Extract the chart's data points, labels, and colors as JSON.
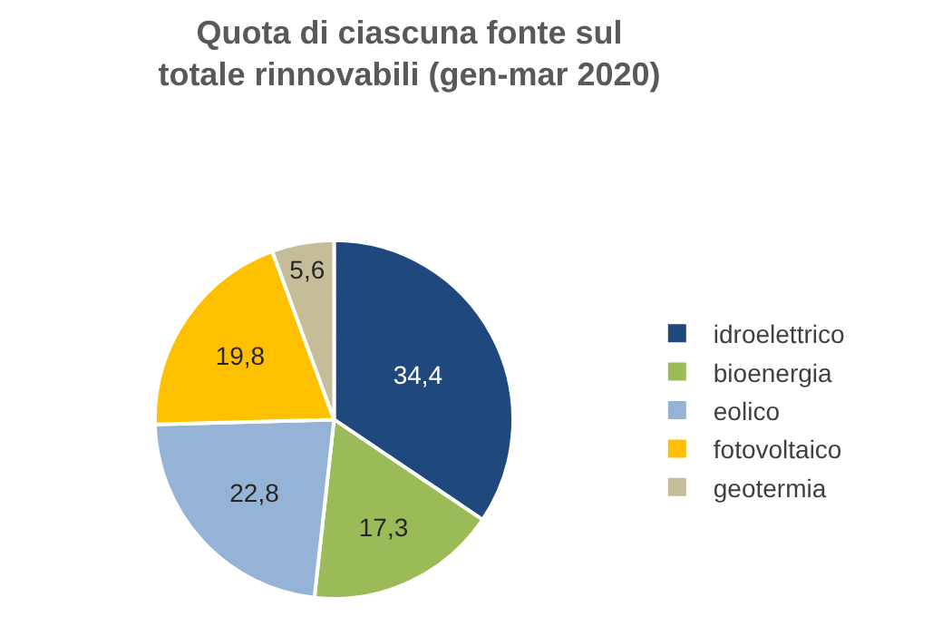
{
  "chart_data": {
    "type": "pie",
    "title": "Quota di ciascuna fonte sul totale rinnovabili (gen-mar 2020)",
    "categories": [
      "idroelettrico",
      "bioenergia",
      "eolico",
      "fotovoltaico",
      "geotermia"
    ],
    "values": [
      34.4,
      17.3,
      22.8,
      19.8,
      5.6
    ],
    "value_labels": [
      "34,4",
      "17,3",
      "22,8",
      "19,8",
      "5,6"
    ],
    "colors": [
      "#1f497d",
      "#9bbb59",
      "#95b3d7",
      "#ffc000",
      "#c4bd97"
    ],
    "legend": "right"
  }
}
